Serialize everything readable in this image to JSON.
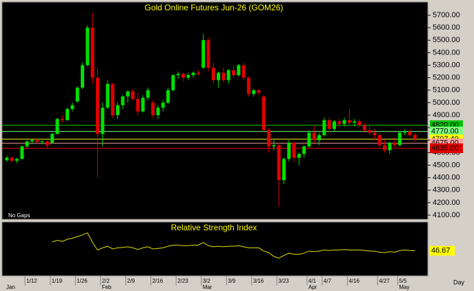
{
  "chart_data": {
    "type": "candlestick",
    "title": "Gold Online Futures Jun-26 (GOM26)",
    "note": "No Gaps",
    "x_unit": "Day",
    "up_color": "#00e000",
    "down_color": "#e00000",
    "categories": [
      null,
      null,
      null,
      null,
      "1/12",
      null,
      null,
      null,
      null,
      "1/19",
      null,
      null,
      null,
      null,
      "1/26",
      null,
      null,
      null,
      null,
      "2/2",
      null,
      null,
      null,
      null,
      "2/9",
      null,
      null,
      null,
      null,
      "2/16",
      null,
      null,
      null,
      null,
      "2/23",
      null,
      null,
      null,
      null,
      "3/2",
      null,
      null,
      null,
      null,
      "3/9",
      null,
      null,
      null,
      null,
      "3/16",
      null,
      null,
      null,
      null,
      "3/23",
      null,
      null,
      null,
      null,
      null,
      "4/1",
      null,
      null,
      "4/7",
      null,
      null,
      null,
      null,
      "4/16",
      null,
      null,
      null,
      null,
      null,
      "4/27",
      null,
      null,
      null,
      "5/5",
      null,
      null,
      null
    ],
    "months": [
      "Jan",
      null,
      null,
      null,
      null,
      null,
      null,
      null,
      null,
      null,
      null,
      null,
      null,
      null,
      null,
      null,
      null,
      null,
      null,
      "Feb",
      null,
      null,
      null,
      null,
      null,
      null,
      null,
      null,
      null,
      null,
      null,
      null,
      null,
      null,
      null,
      null,
      null,
      null,
      null,
      "Mar",
      null,
      null,
      null,
      null,
      null,
      null,
      null,
      null,
      null,
      null,
      null,
      null,
      null,
      null,
      null,
      null,
      null,
      null,
      null,
      null,
      "Apr",
      null,
      null,
      null,
      null,
      null,
      null,
      null,
      null,
      null,
      null,
      null,
      null,
      null,
      null,
      null,
      null,
      null,
      "May",
      null,
      null,
      null
    ],
    "open": [
      4540,
      4560,
      4535,
      4550,
      4650,
      4690,
      4700,
      4685,
      4690,
      4680,
      4750,
      4870,
      4860,
      4950,
      5010,
      5120,
      5300,
      5600,
      5200,
      4750,
      4960,
      5150,
      4900,
      4980,
      5050,
      5090,
      5030,
      4930,
      5040,
      5000,
      4900,
      4960,
      5000,
      5100,
      5220,
      5230,
      5200,
      5220,
      5240,
      5280,
      5500,
      5280,
      5180,
      5240,
      5180,
      5260,
      5220,
      5300,
      5200,
      5070,
      5100,
      5050,
      4780,
      4650,
      4660,
      4380,
      4550,
      4680,
      4560,
      4590,
      4650,
      4760,
      4700,
      4740,
      4860,
      4790,
      4850,
      4830,
      4860,
      4840,
      4850,
      4820,
      4780,
      4760,
      4740,
      4660,
      4620,
      4680,
      4660,
      4760,
      4770,
      4740
    ],
    "high": [
      4575,
      4570,
      4560,
      4660,
      4700,
      4705,
      4710,
      4700,
      4700,
      4760,
      4880,
      4900,
      4960,
      5000,
      5130,
      5320,
      5620,
      5720,
      5280,
      5000,
      5180,
      5160,
      5000,
      5060,
      5100,
      5110,
      5080,
      5060,
      5120,
      5020,
      4980,
      5020,
      5120,
      5230,
      5250,
      5240,
      5240,
      5250,
      5260,
      5550,
      5520,
      5320,
      5250,
      5280,
      5270,
      5300,
      5310,
      5320,
      5210,
      5110,
      5110,
      5060,
      4800,
      4700,
      4680,
      4560,
      4700,
      4690,
      4600,
      4660,
      4780,
      4820,
      4760,
      4880,
      4880,
      4860,
      4870,
      4880,
      4950,
      4870,
      4870,
      4840,
      4820,
      4790,
      4760,
      4700,
      4690,
      4720,
      4770,
      4790,
      4790,
      4760
    ],
    "low": [
      4525,
      4520,
      4515,
      4545,
      4640,
      4670,
      4675,
      4665,
      4630,
      4675,
      4745,
      4840,
      4855,
      4930,
      5000,
      5110,
      5290,
      5150,
      4400,
      4650,
      4950,
      4880,
      4870,
      4950,
      5000,
      5020,
      4900,
      4920,
      5020,
      4880,
      4870,
      4930,
      4990,
      5090,
      5190,
      5170,
      5180,
      5200,
      5220,
      5270,
      5250,
      5150,
      5120,
      5160,
      5150,
      5200,
      5210,
      5180,
      5050,
      5050,
      5060,
      4760,
      4600,
      4620,
      4170,
      4350,
      4530,
      4520,
      4500,
      4560,
      4640,
      4680,
      4660,
      4730,
      4760,
      4770,
      4800,
      4810,
      4820,
      4810,
      4800,
      4760,
      4740,
      4700,
      4640,
      4600,
      4590,
      4640,
      4650,
      4740,
      4730,
      4690
    ],
    "close": [
      4560,
      4535,
      4550,
      4650,
      4690,
      4700,
      4685,
      4690,
      4660,
      4750,
      4870,
      4860,
      4950,
      4980,
      5120,
      5300,
      5600,
      5200,
      4750,
      4960,
      5150,
      4900,
      4980,
      5050,
      5090,
      5030,
      4930,
      5040,
      5100,
      4900,
      4960,
      5000,
      5100,
      5220,
      5230,
      5200,
      5220,
      5240,
      5230,
      5500,
      5280,
      5180,
      5240,
      5180,
      5260,
      5220,
      5300,
      5200,
      5070,
      5100,
      5080,
      4780,
      4650,
      4660,
      4380,
      4550,
      4680,
      4560,
      4590,
      4650,
      4760,
      4700,
      4740,
      4860,
      4790,
      4850,
      4830,
      4860,
      4840,
      4850,
      4820,
      4780,
      4760,
      4740,
      4660,
      4620,
      4680,
      4660,
      4760,
      4770,
      4740,
      4707.4
    ],
    "ylim": [
      4067,
      5805
    ],
    "yticks": [
      {
        "value": 4100,
        "label": "4100.00"
      },
      {
        "value": 4200,
        "label": "4200.00"
      },
      {
        "value": 4300,
        "label": "4300.00"
      },
      {
        "value": 4400,
        "label": "4400.00"
      },
      {
        "value": 4500,
        "label": "4500.00"
      },
      {
        "value": 4600,
        "label": "4600.00"
      },
      {
        "value": 4700,
        "label": "4700.00"
      },
      {
        "value": 4800,
        "label": "4800.00"
      },
      {
        "value": 4900,
        "label": "4900.00"
      },
      {
        "value": 5000,
        "label": "5000.00"
      },
      {
        "value": 5100,
        "label": "5100.00"
      },
      {
        "value": 5200,
        "label": "5200.00"
      },
      {
        "value": 5300,
        "label": "5300.00"
      },
      {
        "value": 5400,
        "label": "5400.00"
      },
      {
        "value": 5500,
        "label": "5500.00"
      },
      {
        "value": 5600,
        "label": "5600.00"
      },
      {
        "value": 5700,
        "label": "5700.00"
      }
    ],
    "levels": [
      {
        "value": 4820,
        "label": "4820.00",
        "color": "#00c000"
      },
      {
        "value": 4770,
        "label": "4770.00",
        "color": "#80ff80"
      },
      {
        "value": 4707.4,
        "label": "4707.40",
        "color": "#ffff00"
      },
      {
        "value": 4675,
        "label": "4675.00",
        "color": "#ffa0a0"
      },
      {
        "value": 4635,
        "label": "4635.00",
        "color": "#e00000"
      }
    ],
    "rsi": {
      "title": "Relative Strength Index",
      "color": "#e0e000",
      "ylim": [
        0,
        100
      ],
      "values": [
        null,
        null,
        null,
        null,
        null,
        null,
        null,
        null,
        null,
        63,
        66,
        64,
        68,
        70,
        73,
        76,
        80,
        62,
        48,
        52,
        55,
        50,
        52,
        53,
        54,
        52,
        49,
        52,
        54,
        50,
        51,
        52,
        55,
        57,
        57,
        56,
        56,
        57,
        57,
        62,
        56,
        54,
        55,
        54,
        55,
        55,
        56,
        54,
        52,
        52,
        52,
        46,
        43,
        36,
        33,
        38,
        42,
        40,
        40,
        42,
        46,
        45,
        46,
        48,
        47,
        48,
        48,
        49,
        48,
        48,
        48,
        47,
        46,
        46,
        44,
        43,
        45,
        44,
        47,
        48,
        47,
        46.67
      ]
    }
  }
}
